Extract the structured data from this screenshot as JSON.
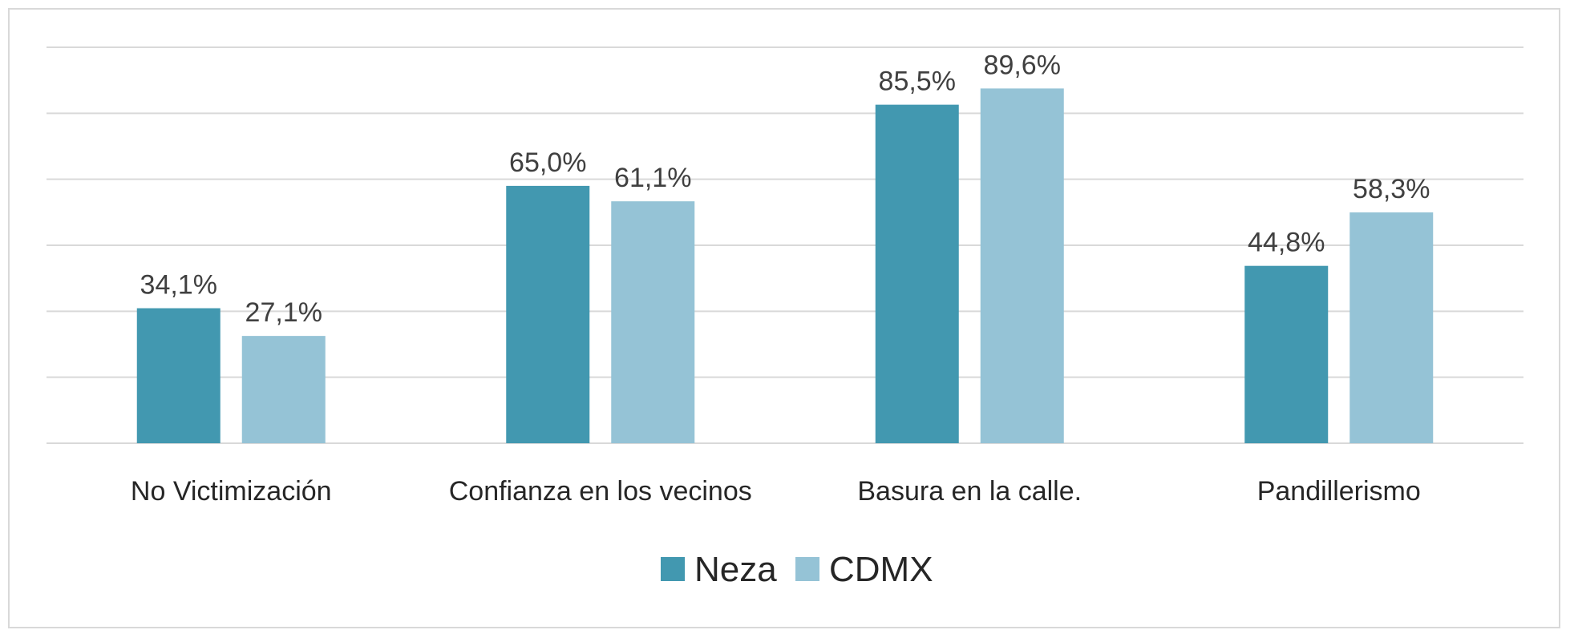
{
  "chart_data": {
    "type": "bar",
    "categories": [
      "No Victimización",
      "Confianza en los vecinos",
      "Basura en la calle.",
      "Pandillerismo"
    ],
    "series": [
      {
        "name": "Neza",
        "color": "#4298b0",
        "values": [
          34.1,
          65.0,
          85.5,
          44.8
        ],
        "labels": [
          "34,1%",
          "65,0%",
          "85,5%",
          "44,8%"
        ]
      },
      {
        "name": "CDMX",
        "color": "#95c3d6",
        "values": [
          27.1,
          61.1,
          89.6,
          58.3
        ],
        "labels": [
          "27,1%",
          "61,1%",
          "89,6%",
          "58,3%"
        ]
      }
    ],
    "ylim": [
      0,
      100
    ],
    "grid": true,
    "legend_position": "bottom",
    "title": "",
    "xlabel": "",
    "ylabel": "",
    "gridline_color": "#d9d9d9"
  }
}
